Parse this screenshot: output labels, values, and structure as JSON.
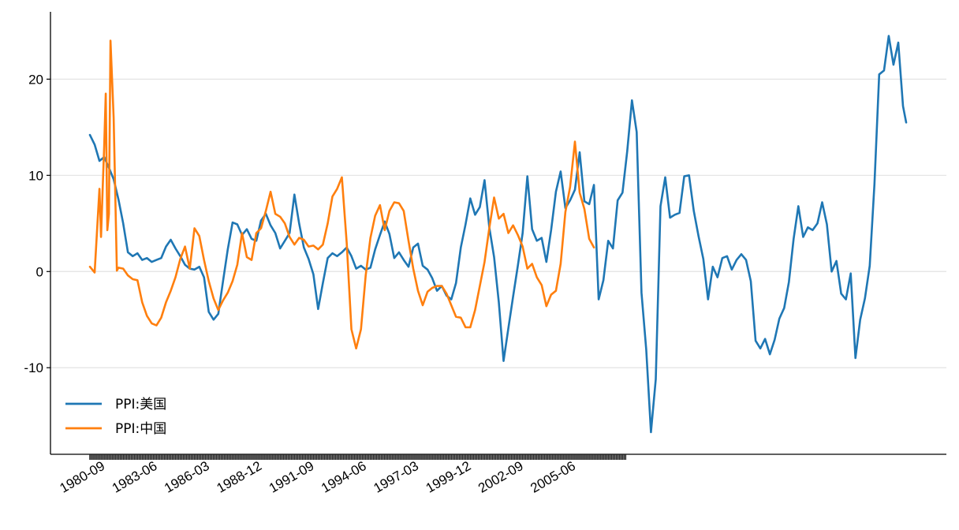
{
  "chart_data": {
    "type": "line",
    "title": "",
    "xlabel": "",
    "ylabel": "",
    "grid": "horizontal",
    "legend_position": "lower-left",
    "x_range": [
      "1980-01",
      "2022-12"
    ],
    "ylim": [
      -19,
      27
    ],
    "y_ticks": [
      20,
      10,
      0,
      -10
    ],
    "y_tick_labels": [
      "20",
      "10",
      "0",
      "-10"
    ],
    "x_tick_labels": [
      "1980-09",
      "1983-06",
      "1986-03",
      "1988-12",
      "1991-09",
      "1994-06",
      "1997-03",
      "1999-12",
      "2002-09",
      "2005-06"
    ],
    "x_tick_dates": [
      "1980-09",
      "1983-06",
      "1986-03",
      "1988-12",
      "1991-09",
      "1994-06",
      "1997-03",
      "1999-12",
      "2002-09",
      "2005-06"
    ],
    "minor_tick_range": [
      "1980-01",
      "2008-03"
    ],
    "series": [
      {
        "name": "PPI:美国",
        "color": "#1f77b4",
        "points": [
          [
            "1980-01",
            14.2
          ],
          [
            "1980-04",
            13.2
          ],
          [
            "1980-07",
            11.5
          ],
          [
            "1980-10",
            11.9
          ],
          [
            "1981-01",
            10.8
          ],
          [
            "1981-04",
            9.6
          ],
          [
            "1981-07",
            7.5
          ],
          [
            "1981-10",
            5.0
          ],
          [
            "1982-01",
            2.0
          ],
          [
            "1982-04",
            1.6
          ],
          [
            "1982-07",
            1.9
          ],
          [
            "1982-10",
            1.2
          ],
          [
            "1983-01",
            1.4
          ],
          [
            "1983-04",
            1.0
          ],
          [
            "1983-07",
            1.2
          ],
          [
            "1983-10",
            1.4
          ],
          [
            "1984-01",
            2.6
          ],
          [
            "1984-04",
            3.3
          ],
          [
            "1984-07",
            2.4
          ],
          [
            "1984-10",
            1.6
          ],
          [
            "1985-01",
            0.7
          ],
          [
            "1985-04",
            0.3
          ],
          [
            "1985-07",
            0.2
          ],
          [
            "1985-10",
            0.5
          ],
          [
            "1986-01",
            -0.6
          ],
          [
            "1986-04",
            -4.2
          ],
          [
            "1986-07",
            -5.0
          ],
          [
            "1986-10",
            -4.4
          ],
          [
            "1987-01",
            -1.0
          ],
          [
            "1987-04",
            2.3
          ],
          [
            "1987-07",
            5.1
          ],
          [
            "1987-10",
            4.9
          ],
          [
            "1988-01",
            3.8
          ],
          [
            "1988-04",
            4.4
          ],
          [
            "1988-07",
            3.4
          ],
          [
            "1988-10",
            3.2
          ],
          [
            "1989-01",
            5.3
          ],
          [
            "1989-04",
            6.0
          ],
          [
            "1989-07",
            4.8
          ],
          [
            "1989-10",
            4.0
          ],
          [
            "1990-01",
            2.4
          ],
          [
            "1990-04",
            3.2
          ],
          [
            "1990-07",
            4.0
          ],
          [
            "1990-10",
            8.0
          ],
          [
            "1991-01",
            5.0
          ],
          [
            "1991-04",
            2.5
          ],
          [
            "1991-07",
            1.3
          ],
          [
            "1991-10",
            -0.3
          ],
          [
            "1992-01",
            -3.9
          ],
          [
            "1992-04",
            -1.2
          ],
          [
            "1992-07",
            1.4
          ],
          [
            "1992-10",
            1.9
          ],
          [
            "1993-01",
            1.6
          ],
          [
            "1993-04",
            2.0
          ],
          [
            "1993-07",
            2.5
          ],
          [
            "1993-10",
            1.6
          ],
          [
            "1994-01",
            0.3
          ],
          [
            "1994-04",
            0.6
          ],
          [
            "1994-07",
            0.2
          ],
          [
            "1994-10",
            0.4
          ],
          [
            "1995-01",
            2.3
          ],
          [
            "1995-04",
            3.8
          ],
          [
            "1995-07",
            5.2
          ],
          [
            "1995-10",
            3.9
          ],
          [
            "1996-01",
            1.4
          ],
          [
            "1996-04",
            2.0
          ],
          [
            "1996-07",
            1.2
          ],
          [
            "1996-10",
            0.5
          ],
          [
            "1997-01",
            2.5
          ],
          [
            "1997-04",
            2.9
          ],
          [
            "1997-07",
            0.6
          ],
          [
            "1997-10",
            0.2
          ],
          [
            "1998-01",
            -0.7
          ],
          [
            "1998-04",
            -2.0
          ],
          [
            "1998-07",
            -1.5
          ],
          [
            "1998-10",
            -2.5
          ],
          [
            "1999-01",
            -2.9
          ],
          [
            "1999-04",
            -1.2
          ],
          [
            "1999-07",
            2.5
          ],
          [
            "1999-10",
            4.9
          ],
          [
            "2000-01",
            7.6
          ],
          [
            "2000-04",
            5.9
          ],
          [
            "2000-07",
            6.7
          ],
          [
            "2000-10",
            9.5
          ],
          [
            "2001-01",
            4.6
          ],
          [
            "2001-04",
            1.5
          ],
          [
            "2001-07",
            -3.2
          ],
          [
            "2001-10",
            -9.3
          ],
          [
            "2002-01",
            -5.9
          ],
          [
            "2002-04",
            -2.6
          ],
          [
            "2002-07",
            0.6
          ],
          [
            "2002-10",
            4.0
          ],
          [
            "2003-01",
            9.9
          ],
          [
            "2003-04",
            4.4
          ],
          [
            "2003-07",
            3.2
          ],
          [
            "2003-10",
            3.5
          ],
          [
            "2004-01",
            1.0
          ],
          [
            "2004-04",
            4.3
          ],
          [
            "2004-07",
            8.3
          ],
          [
            "2004-10",
            10.4
          ],
          [
            "2005-01",
            6.6
          ],
          [
            "2005-04",
            7.4
          ],
          [
            "2005-07",
            8.5
          ],
          [
            "2005-10",
            12.4
          ],
          [
            "2006-01",
            7.3
          ],
          [
            "2006-04",
            7.0
          ],
          [
            "2006-07",
            9.0
          ],
          [
            "2006-10",
            -2.9
          ],
          [
            "2007-01",
            -0.9
          ],
          [
            "2007-04",
            3.2
          ],
          [
            "2007-07",
            2.4
          ],
          [
            "2007-10",
            7.4
          ],
          [
            "2008-01",
            8.2
          ],
          [
            "2008-04",
            12.5
          ],
          [
            "2008-07",
            17.8
          ],
          [
            "2008-10",
            14.5
          ],
          [
            "2009-01",
            -2.2
          ],
          [
            "2009-04",
            -8.1
          ],
          [
            "2009-07",
            -16.7
          ],
          [
            "2009-10",
            -11.2
          ],
          [
            "2010-01",
            6.8
          ],
          [
            "2010-04",
            9.8
          ],
          [
            "2010-07",
            5.6
          ],
          [
            "2010-10",
            5.9
          ],
          [
            "2011-01",
            6.1
          ],
          [
            "2011-04",
            9.9
          ],
          [
            "2011-07",
            10.0
          ],
          [
            "2011-10",
            6.3
          ],
          [
            "2012-01",
            3.7
          ],
          [
            "2012-04",
            1.3
          ],
          [
            "2012-07",
            -2.9
          ],
          [
            "2012-10",
            0.5
          ],
          [
            "2013-01",
            -0.6
          ],
          [
            "2013-04",
            1.4
          ],
          [
            "2013-07",
            1.6
          ],
          [
            "2013-10",
            0.2
          ],
          [
            "2014-01",
            1.2
          ],
          [
            "2014-04",
            1.8
          ],
          [
            "2014-07",
            1.2
          ],
          [
            "2014-10",
            -1.0
          ],
          [
            "2015-01",
            -7.2
          ],
          [
            "2015-04",
            -8.0
          ],
          [
            "2015-07",
            -7.0
          ],
          [
            "2015-10",
            -8.6
          ],
          [
            "2016-01",
            -7.1
          ],
          [
            "2016-04",
            -4.9
          ],
          [
            "2016-07",
            -3.8
          ],
          [
            "2016-10",
            -1.1
          ],
          [
            "2017-01",
            3.4
          ],
          [
            "2017-04",
            6.8
          ],
          [
            "2017-07",
            3.6
          ],
          [
            "2017-10",
            4.6
          ],
          [
            "2018-01",
            4.3
          ],
          [
            "2018-04",
            5.0
          ],
          [
            "2018-07",
            7.2
          ],
          [
            "2018-10",
            4.9
          ],
          [
            "2019-01",
            0.0
          ],
          [
            "2019-04",
            1.1
          ],
          [
            "2019-07",
            -2.3
          ],
          [
            "2019-10",
            -2.9
          ],
          [
            "2020-01",
            -0.2
          ],
          [
            "2020-04",
            -9.0
          ],
          [
            "2020-07",
            -5.0
          ],
          [
            "2020-10",
            -2.8
          ],
          [
            "2021-01",
            0.6
          ],
          [
            "2021-04",
            9.1
          ],
          [
            "2021-07",
            20.5
          ],
          [
            "2021-10",
            20.9
          ],
          [
            "2022-01",
            24.5
          ],
          [
            "2022-04",
            21.5
          ],
          [
            "2022-07",
            23.8
          ],
          [
            "2022-10",
            17.2
          ],
          [
            "2022-12",
            15.5
          ]
        ]
      },
      {
        "name": "PPI:中国",
        "color": "#ff7f0e",
        "points": [
          [
            "1980-01",
            0.5
          ],
          [
            "1980-04",
            -0.1
          ],
          [
            "1980-07",
            8.6
          ],
          [
            "1980-08",
            3.6
          ],
          [
            "1980-09",
            8.4
          ],
          [
            "1980-10",
            13.0
          ],
          [
            "1980-11",
            18.5
          ],
          [
            "1980-12",
            4.3
          ],
          [
            "1981-01",
            6.0
          ],
          [
            "1981-02",
            24.0
          ],
          [
            "1981-04",
            16.0
          ],
          [
            "1981-06",
            0.1
          ],
          [
            "1981-07",
            0.4
          ],
          [
            "1981-10",
            0.3
          ],
          [
            "1982-01",
            -0.4
          ],
          [
            "1982-04",
            -0.8
          ],
          [
            "1982-07",
            -0.9
          ],
          [
            "1982-10",
            -3.2
          ],
          [
            "1983-01",
            -4.6
          ],
          [
            "1983-04",
            -5.4
          ],
          [
            "1983-07",
            -5.6
          ],
          [
            "1983-10",
            -4.8
          ],
          [
            "1984-01",
            -3.2
          ],
          [
            "1984-04",
            -2.0
          ],
          [
            "1984-07",
            -0.6
          ],
          [
            "1984-10",
            1.3
          ],
          [
            "1985-01",
            2.6
          ],
          [
            "1985-04",
            0.3
          ],
          [
            "1985-07",
            4.5
          ],
          [
            "1985-10",
            3.7
          ],
          [
            "1986-01",
            1.2
          ],
          [
            "1986-04",
            -1.0
          ],
          [
            "1986-07",
            -2.8
          ],
          [
            "1986-10",
            -4.0
          ],
          [
            "1987-01",
            -3.0
          ],
          [
            "1987-04",
            -2.2
          ],
          [
            "1987-07",
            -1.0
          ],
          [
            "1987-10",
            0.7
          ],
          [
            "1988-01",
            4.0
          ],
          [
            "1988-04",
            1.5
          ],
          [
            "1988-07",
            1.2
          ],
          [
            "1988-10",
            4.0
          ],
          [
            "1989-01",
            4.5
          ],
          [
            "1989-04",
            6.3
          ],
          [
            "1989-07",
            8.3
          ],
          [
            "1989-10",
            6.0
          ],
          [
            "1990-01",
            5.7
          ],
          [
            "1990-04",
            5.0
          ],
          [
            "1990-07",
            3.6
          ],
          [
            "1990-10",
            2.8
          ],
          [
            "1991-01",
            3.5
          ],
          [
            "1991-04",
            3.3
          ],
          [
            "1991-07",
            2.6
          ],
          [
            "1991-10",
            2.7
          ],
          [
            "1992-01",
            2.3
          ],
          [
            "1992-04",
            2.8
          ],
          [
            "1992-07",
            5.0
          ],
          [
            "1992-10",
            7.8
          ],
          [
            "1993-01",
            8.6
          ],
          [
            "1993-04",
            9.8
          ],
          [
            "1993-07",
            3.0
          ],
          [
            "1993-10",
            -6.0
          ],
          [
            "1994-01",
            -8.0
          ],
          [
            "1994-04",
            -6.0
          ],
          [
            "1994-07",
            -0.4
          ],
          [
            "1994-10",
            3.5
          ],
          [
            "1995-01",
            5.8
          ],
          [
            "1995-04",
            6.9
          ],
          [
            "1995-07",
            4.3
          ],
          [
            "1995-10",
            6.3
          ],
          [
            "1996-01",
            7.2
          ],
          [
            "1996-04",
            7.1
          ],
          [
            "1996-07",
            6.3
          ],
          [
            "1996-10",
            3.2
          ],
          [
            "1997-01",
            0.3
          ],
          [
            "1997-04",
            -2.0
          ],
          [
            "1997-07",
            -3.5
          ],
          [
            "1997-10",
            -2.1
          ],
          [
            "1998-01",
            -1.7
          ],
          [
            "1998-04",
            -1.5
          ],
          [
            "1998-07",
            -1.5
          ],
          [
            "1998-10",
            -2.3
          ],
          [
            "1999-01",
            -3.5
          ],
          [
            "1999-04",
            -4.7
          ],
          [
            "1999-07",
            -4.8
          ],
          [
            "1999-10",
            -5.8
          ],
          [
            "2000-01",
            -5.8
          ],
          [
            "2000-04",
            -4.0
          ],
          [
            "2000-07",
            -1.5
          ],
          [
            "2000-10",
            1.0
          ],
          [
            "2001-01",
            4.5
          ],
          [
            "2001-04",
            7.7
          ],
          [
            "2001-07",
            5.5
          ],
          [
            "2001-10",
            6.0
          ],
          [
            "2002-01",
            4.0
          ],
          [
            "2002-04",
            4.8
          ],
          [
            "2002-07",
            3.8
          ],
          [
            "2002-10",
            2.6
          ],
          [
            "2003-01",
            0.3
          ],
          [
            "2003-04",
            0.8
          ],
          [
            "2003-07",
            -0.6
          ],
          [
            "2003-10",
            -1.4
          ],
          [
            "2004-01",
            -3.6
          ],
          [
            "2004-04",
            -2.4
          ],
          [
            "2004-07",
            -2.0
          ],
          [
            "2004-10",
            0.8
          ],
          [
            "2005-01",
            6.2
          ],
          [
            "2005-04",
            8.8
          ],
          [
            "2005-07",
            13.5
          ],
          [
            "2005-10",
            8.2
          ],
          [
            "2006-01",
            6.5
          ],
          [
            "2006-04",
            3.4
          ],
          [
            "2006-07",
            2.5
          ]
        ]
      }
    ]
  }
}
